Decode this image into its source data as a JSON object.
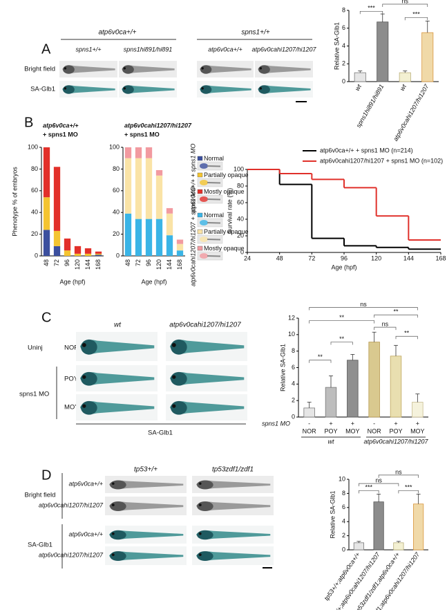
{
  "panel_labels": [
    "A",
    "B",
    "C",
    "D"
  ],
  "panel_a": {
    "genotype_headers": [
      "atp6v0ca+/+",
      "spns1+/+"
    ],
    "column_labels": [
      "spns1+/+",
      "spns1hi891/hi891",
      "atp6v0ca+/+",
      "atp6v0cahi1207/hi1207"
    ],
    "row_labels": [
      "Bright field",
      "SA-Glb1"
    ]
  },
  "panel_b": {
    "legend_titles": [
      "atp6v0ca+/+ + spns1 MO",
      "atp6v0cahi1207/hi1207 + spns1 MO"
    ]
  },
  "panel_c": {
    "column_labels": [
      "wt",
      "atp6v0cahi1207/hi1207"
    ],
    "row_groups": [
      "Uninj",
      "spns1 MO"
    ],
    "row_labels": [
      "NOR",
      "POY",
      "MOY"
    ],
    "caption": "SA-Glb1"
  },
  "panel_d": {
    "column_labels": [
      "tp53+/+",
      "tp53zdf1/zdf1"
    ],
    "row_groups": [
      "Bright field",
      "SA-Glb1"
    ],
    "row_labels": [
      "atp6v0ca+/+",
      "atp6v0cahi1207/hi1207",
      "atp6v0ca+/+",
      "atp6v0cahi1207/hi1207"
    ]
  },
  "chart_data": [
    {
      "type": "bar",
      "ylabel": "Relative SA-Glb1",
      "categories": [
        "wt",
        "spns1hi891/hi891",
        "wt",
        "atp6v0cahi1207/hi1207"
      ],
      "values": [
        1.0,
        6.7,
        1.0,
        5.5
      ],
      "errors": [
        0.2,
        0.9,
        0.2,
        1.3
      ],
      "colors": [
        "#e6e6e6",
        "#8c8c8c",
        "#f3f0d2",
        "#f0d9a8"
      ],
      "edgecolors": [
        "#777777",
        "#555555",
        "#b8ae78",
        "#d9963c"
      ],
      "ylim": [
        0,
        8
      ],
      "yticks": [
        0,
        2,
        4,
        6,
        8
      ],
      "significance": [
        "***",
        "ns",
        "***"
      ]
    },
    {
      "type": "bar",
      "stacked": true,
      "title": "atp6v0ca+/+",
      "subtitle": "+ spns1 MO",
      "ylabel": "Phenotype % of embryos",
      "xlabel": "Age (hpf)",
      "categories": [
        "48",
        "72",
        "96",
        "120",
        "144",
        "168"
      ],
      "series": [
        {
          "name": "Normal",
          "color": "#3b4f9e",
          "values": [
            24,
            9,
            0,
            0,
            0,
            1
          ]
        },
        {
          "name": "Partially opaque",
          "color": "#f4c430",
          "values": [
            30,
            14,
            5,
            2,
            2,
            1
          ]
        },
        {
          "name": "Mostly opaque",
          "color": "#e2302a",
          "values": [
            46,
            59,
            11,
            7,
            5,
            2
          ]
        }
      ],
      "ylim": [
        0,
        100
      ],
      "yticks": [
        0,
        20,
        40,
        60,
        80,
        100
      ]
    },
    {
      "type": "bar",
      "stacked": true,
      "title": "atp6v0cahi1207/hi1207",
      "subtitle": "+ spns1 MO",
      "xlabel": "Age (hpf)",
      "categories": [
        "48",
        "72",
        "96",
        "120",
        "144",
        "168"
      ],
      "series": [
        {
          "name": "Normal",
          "color": "#3ab4e6",
          "values": [
            39,
            34,
            34,
            34,
            19,
            5
          ]
        },
        {
          "name": "Partially opaque",
          "color": "#fae3a6",
          "values": [
            51,
            56,
            56,
            40,
            20,
            6
          ]
        },
        {
          "name": "Mostly opaque",
          "color": "#f29aa0",
          "values": [
            10,
            10,
            10,
            5,
            5,
            4
          ]
        }
      ],
      "ylim": [
        0,
        100
      ],
      "yticks": [
        0,
        20,
        40,
        60,
        80,
        100
      ]
    },
    {
      "type": "line",
      "step": true,
      "ylabel": "Survival rate (%)",
      "xlabel": "Age (hpf)",
      "x": [
        24,
        48,
        72,
        96,
        120,
        144
      ],
      "xlim": [
        24,
        168
      ],
      "xticks": [
        24,
        48,
        72,
        96,
        120,
        144,
        168
      ],
      "ylim": [
        0,
        100
      ],
      "yticks": [
        0,
        20,
        40,
        60,
        80,
        100
      ],
      "series": [
        {
          "name": "atp6v0ca+/+ + spns1 MO  (n=214)",
          "color": "#000000",
          "values": [
            100,
            82,
            17,
            8,
            6,
            4
          ]
        },
        {
          "name": "atp6v0cahi1207/hi1207 + spns1 MO (n=102)",
          "color": "#e0302a",
          "values": [
            100,
            95,
            88,
            78,
            44,
            15
          ]
        }
      ]
    },
    {
      "type": "bar",
      "ylabel": "Relative SA-Glb1",
      "row_label": "spns1 MO",
      "treatment": [
        "-",
        "+",
        "+",
        "-",
        "+",
        "+"
      ],
      "categories": [
        "NOR",
        "POY",
        "MOY",
        "NOR",
        "POY",
        "MOY"
      ],
      "groups": [
        "wt",
        "atp6v0cahi1207/hi1207"
      ],
      "values": [
        1.1,
        3.6,
        6.9,
        9.1,
        7.4,
        1.8
      ],
      "errors": [
        0.7,
        1.4,
        0.7,
        1.2,
        1.3,
        1.0
      ],
      "colors": [
        "#e6e6e6",
        "#bdbdbd",
        "#8f8f8f",
        "#d9c98f",
        "#e9dfb0",
        "#f5f2dc"
      ],
      "edgecolors": [
        "#777777",
        "#777777",
        "#555555",
        "#b89a50",
        "#c0a860",
        "#c8bc90"
      ],
      "ylim": [
        0,
        12
      ],
      "yticks": [
        0,
        2,
        4,
        6,
        8,
        10,
        12
      ],
      "significance": [
        "ns",
        "**",
        "**",
        "ns",
        "**",
        "**",
        "**"
      ]
    },
    {
      "type": "bar",
      "ylabel": "Relative SA-Glb1",
      "categories": [
        "tp53+/+;atp6v0ca+/+",
        "tp53+/+;atp6v0cahi1207/hi1207",
        "tp53zdf1/zdf1;atp6v0ca+/+",
        "tp53zdf1/zdf1;atp6v0cahi1207/hi1207"
      ],
      "values": [
        1.0,
        6.8,
        1.0,
        6.5
      ],
      "errors": [
        0.2,
        1.1,
        0.2,
        1.4
      ],
      "colors": [
        "#e6e6e6",
        "#8c8c8c",
        "#f3f0d2",
        "#f0d9a8"
      ],
      "edgecolors": [
        "#777777",
        "#555555",
        "#b8ae78",
        "#d9963c"
      ],
      "ylim": [
        0,
        10
      ],
      "yticks": [
        0,
        2,
        4,
        6,
        8,
        10
      ],
      "significance": [
        "***",
        "ns",
        "ns",
        "***"
      ]
    }
  ]
}
